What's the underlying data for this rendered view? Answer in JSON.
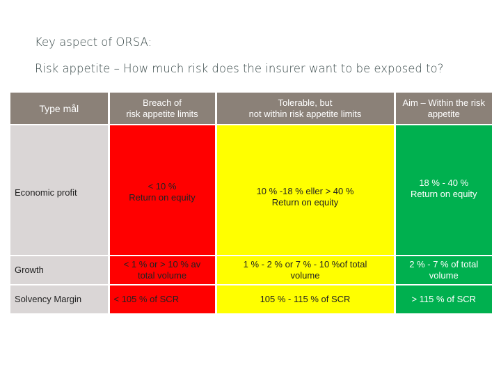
{
  "titles": {
    "line1": "Key aspect of ORSA:",
    "line2": "Risk appetite – How much risk does the insurer want to be exposed to?"
  },
  "table": {
    "headers": {
      "type": "Type mål",
      "breach_line1": "Breach of",
      "breach_line2": "risk appetite limits",
      "tolerable_line1": "Tolerable, but",
      "tolerable_line2": "not within risk appetite limits",
      "aim_line1": "Aim – Within the risk",
      "aim_line2": "appetite"
    },
    "rows": {
      "economic": {
        "label": "Economic profit",
        "breach_line1": "< 10 %",
        "breach_line2": "Return on equity",
        "tolerable_line1": "10 % -18 % eller > 40 %",
        "tolerable_line2": "Return on equity",
        "aim_line1": "18 % - 40 %",
        "aim_line2": "Return on equity"
      },
      "growth": {
        "label": "Growth",
        "breach_line1": "< 1 % or > 10 % av",
        "breach_line2": "total volume",
        "tolerable_line1": "1 % - 2 % or 7 % - 10 %of total",
        "tolerable_line2": "volume",
        "aim_line1": "2 % - 7 % of total",
        "aim_line2": "volume"
      },
      "solvency": {
        "label": "Solvency Margin",
        "breach": "< 105 % of SCR",
        "tolerable": "105 % - 115 % of SCR",
        "aim": "> 115 %  of SCR"
      }
    },
    "colors": {
      "header": "#8b8178",
      "label_cell": "#dad6d6",
      "breach": "#ff0000",
      "tolerable": "#ffff00",
      "aim": "#00b04f"
    }
  }
}
